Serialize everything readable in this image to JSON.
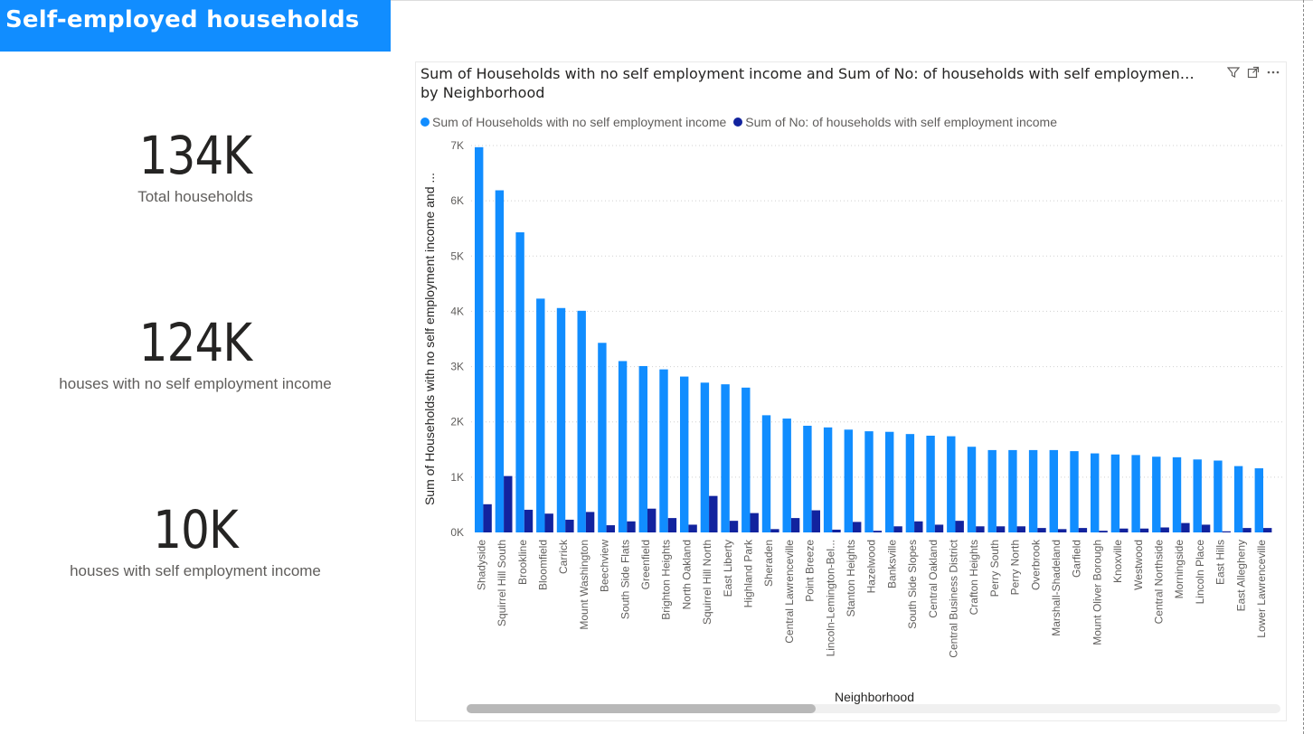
{
  "page": {
    "title": "Self-employed households"
  },
  "cards": [
    {
      "value": "134K",
      "label": "Total households"
    },
    {
      "value": "124K",
      "label": "houses with no self employment income"
    },
    {
      "value": "10K",
      "label": "houses with self employment income"
    }
  ],
  "visual": {
    "title": "Sum of Households with no self employment income and Sum of No: of households with self employmen… by Neighborhood",
    "icons": [
      "filter-icon",
      "focus-mode-icon",
      "more-options-icon"
    ]
  },
  "chart_data": {
    "type": "bar",
    "xlabel": "Neighborhood",
    "ylabel": "Sum of Households with no self employment income and ...",
    "ylim": [
      0,
      7000
    ],
    "yticks": [
      {
        "value": 0,
        "label": "0K"
      },
      {
        "value": 1000,
        "label": "1K"
      },
      {
        "value": 2000,
        "label": "2K"
      },
      {
        "value": 3000,
        "label": "3K"
      },
      {
        "value": 4000,
        "label": "4K"
      },
      {
        "value": 5000,
        "label": "5K"
      },
      {
        "value": 6000,
        "label": "6K"
      },
      {
        "value": 7000,
        "label": "7K"
      }
    ],
    "grid": true,
    "legend": "top-left",
    "categories": [
      "Shadyside",
      "Squirrel Hill South",
      "Brookline",
      "Bloomfield",
      "Carrick",
      "Mount Washington",
      "Beechview",
      "South Side Flats",
      "Greenfield",
      "Brighton Heights",
      "North Oakland",
      "Squirrel Hill North",
      "East Liberty",
      "Highland Park",
      "Sheraden",
      "Central Lawrenceville",
      "Point Breeze",
      "Lincoln-Lemington-Bel...",
      "Stanton Heights",
      "Hazelwood",
      "Banksville",
      "South Side Slopes",
      "Central Oakland",
      "Central Business District",
      "Crafton Heights",
      "Perry South",
      "Perry North",
      "Overbrook",
      "Marshall-Shadeland",
      "Garfield",
      "Mount Oliver Borough",
      "Knoxville",
      "Westwood",
      "Central Northside",
      "Morningside",
      "Lincoln Place",
      "East Hills",
      "East Allegheny",
      "Lower Lawrenceville"
    ],
    "series": [
      {
        "name": "Sum of Households with no self employment income",
        "color": "#118dff",
        "values": [
          6970,
          6190,
          5430,
          4230,
          4060,
          4010,
          3430,
          3100,
          3010,
          2950,
          2820,
          2710,
          2680,
          2620,
          2120,
          2060,
          1930,
          1900,
          1860,
          1830,
          1820,
          1780,
          1750,
          1740,
          1550,
          1490,
          1490,
          1490,
          1490,
          1470,
          1430,
          1410,
          1400,
          1370,
          1360,
          1320,
          1300,
          1200,
          1160
        ]
      },
      {
        "name": "Sum of No: of households with self employment income",
        "color": "#12239e",
        "values": [
          510,
          1020,
          410,
          340,
          230,
          370,
          130,
          200,
          430,
          260,
          140,
          660,
          210,
          350,
          60,
          260,
          400,
          50,
          190,
          30,
          110,
          200,
          140,
          210,
          110,
          110,
          110,
          80,
          60,
          80,
          30,
          70,
          70,
          90,
          170,
          140,
          20,
          80,
          80
        ]
      }
    ]
  }
}
